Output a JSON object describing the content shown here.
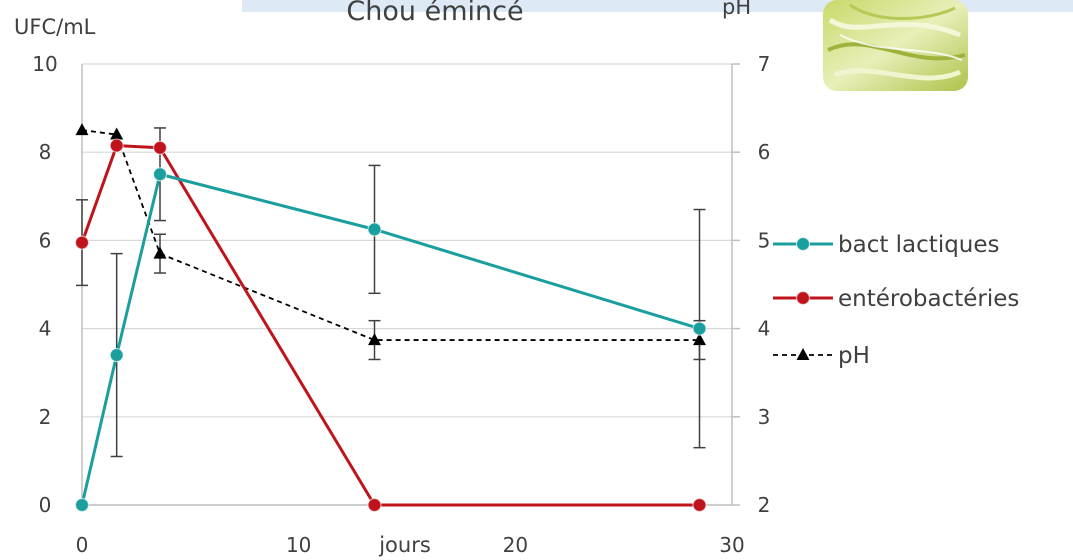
{
  "colors": {
    "bact_lactiques": "#1b9e9e",
    "enterobacteries": "#c0141c",
    "ph": "#000000",
    "grid": "#d9d9d9",
    "axis": "#bfbfbf",
    "title_banner": "#ddeaf5"
  },
  "chart_data": {
    "type": "line",
    "title": "Chou émincé",
    "xlabel": "jours",
    "ylabel_left": "UFC/mL",
    "ylabel_right": "pH",
    "xlim": [
      0,
      30
    ],
    "ylim_left": [
      0,
      10
    ],
    "ylim_right": [
      2,
      7
    ],
    "x_ticks": [
      "0",
      "10",
      "20",
      "30"
    ],
    "y_left_ticks": [
      "0",
      "2",
      "4",
      "6",
      "8",
      "10"
    ],
    "y_right_ticks": [
      "2",
      "3",
      "4",
      "5",
      "6",
      "7"
    ],
    "grid": true,
    "legend_position": "right",
    "series": [
      {
        "name": "bact lactiques",
        "axis": "left",
        "color_key": "bact_lactiques",
        "marker": "circle",
        "line_style": "solid",
        "x": [
          0,
          1.6,
          3.6,
          13.5,
          28.5
        ],
        "y": [
          0,
          3.4,
          7.5,
          6.25,
          4.0
        ],
        "error": [
          null,
          2.3,
          1.05,
          1.45,
          2.7
        ]
      },
      {
        "name": "entérobactéries",
        "axis": "left",
        "color_key": "enterobacteries",
        "marker": "circle",
        "line_style": "solid",
        "x": [
          0,
          1.6,
          3.6,
          13.5,
          28.5
        ],
        "y": [
          5.95,
          8.15,
          8.1,
          0,
          0
        ],
        "error": [
          0.97,
          null,
          null,
          null,
          null
        ]
      },
      {
        "name": "pH",
        "axis": "right",
        "color_key": "ph",
        "marker": "triangle",
        "line_style": "dashed",
        "x": [
          0,
          1.6,
          3.6,
          13.5,
          28.5
        ],
        "y": [
          6.25,
          6.2,
          4.85,
          3.87,
          3.87
        ],
        "error": [
          null,
          null,
          0.22,
          0.22,
          0.22
        ]
      }
    ]
  }
}
